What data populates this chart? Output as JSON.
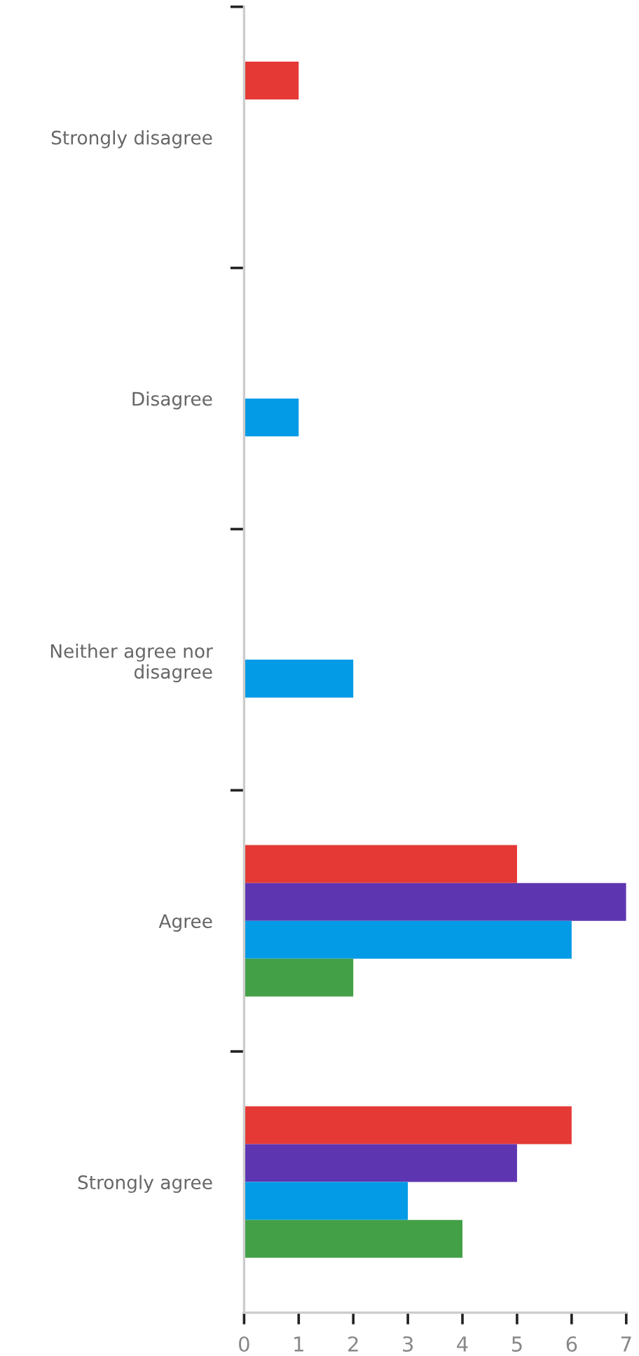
{
  "chart_data": {
    "type": "bar",
    "orientation": "horizontal",
    "categories": [
      "Strongly disagree",
      "Disagree",
      "Neither agree nor disagree",
      "Agree",
      "Strongly agree"
    ],
    "series": [
      {
        "color": "#e53935",
        "values": [
          1,
          0,
          0,
          5,
          6
        ]
      },
      {
        "color": "#5e35b1",
        "values": [
          0,
          0,
          0,
          7,
          5
        ]
      },
      {
        "color": "#039be5",
        "values": [
          0,
          1,
          2,
          6,
          3
        ]
      },
      {
        "color": "#43a047",
        "values": [
          0,
          0,
          0,
          2,
          4
        ]
      }
    ],
    "xlim": [
      0,
      7
    ],
    "xticks": [
      0,
      1,
      2,
      3,
      4,
      5,
      6,
      7
    ]
  }
}
